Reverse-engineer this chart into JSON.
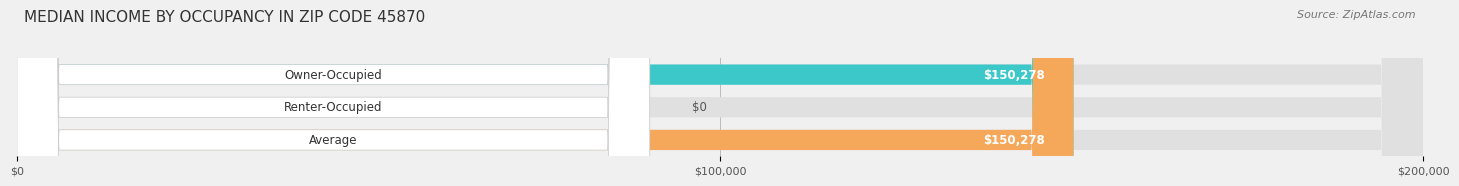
{
  "title": "MEDIAN INCOME BY OCCUPANCY IN ZIP CODE 45870",
  "source": "Source: ZipAtlas.com",
  "categories": [
    "Owner-Occupied",
    "Renter-Occupied",
    "Average"
  ],
  "values": [
    150278,
    0,
    150278
  ],
  "bar_colors": [
    "#3cc8c8",
    "#c8a8d8",
    "#f5a85a"
  ],
  "bar_labels": [
    "$150,278",
    "$0",
    "$150,278"
  ],
  "xlim": [
    0,
    200000
  ],
  "xticks": [
    0,
    100000,
    200000
  ],
  "xtick_labels": [
    "$0",
    "$100,000",
    "$200,000"
  ],
  "background_color": "#f0f0f0",
  "bar_bg_color": "#e0e0e0",
  "title_fontsize": 11,
  "source_fontsize": 8,
  "label_fontsize": 8.5,
  "value_label_color": "#ffffff",
  "zero_label_color": "#555555"
}
